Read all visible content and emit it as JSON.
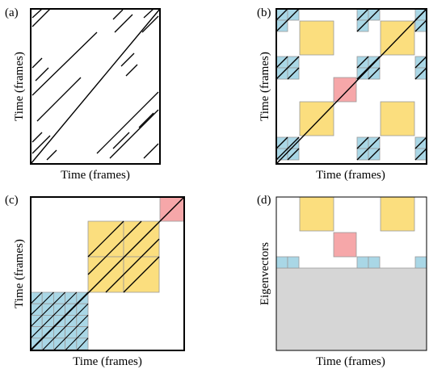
{
  "colors": {
    "blue": "#A9D7E6",
    "yellow": "#FBDE7E",
    "red": "#F6A7A9",
    "gray": "#D6D6D6",
    "ink": "#000000",
    "cell_border": "#9A9A9A"
  },
  "panels": [
    {
      "id": "a",
      "label": "(a)",
      "xlabel": "Time (frames)",
      "ylabel": "Time (frames)"
    },
    {
      "id": "b",
      "label": "(b)",
      "xlabel": "Time (frames)",
      "ylabel": "Time (frames)"
    },
    {
      "id": "c",
      "label": "(c)",
      "xlabel": "Time (frames)",
      "ylabel": "Time (frames)"
    },
    {
      "id": "d",
      "label": "(d)",
      "xlabel": "Time (frames)",
      "ylabel": "Eigenvectors"
    }
  ]
}
